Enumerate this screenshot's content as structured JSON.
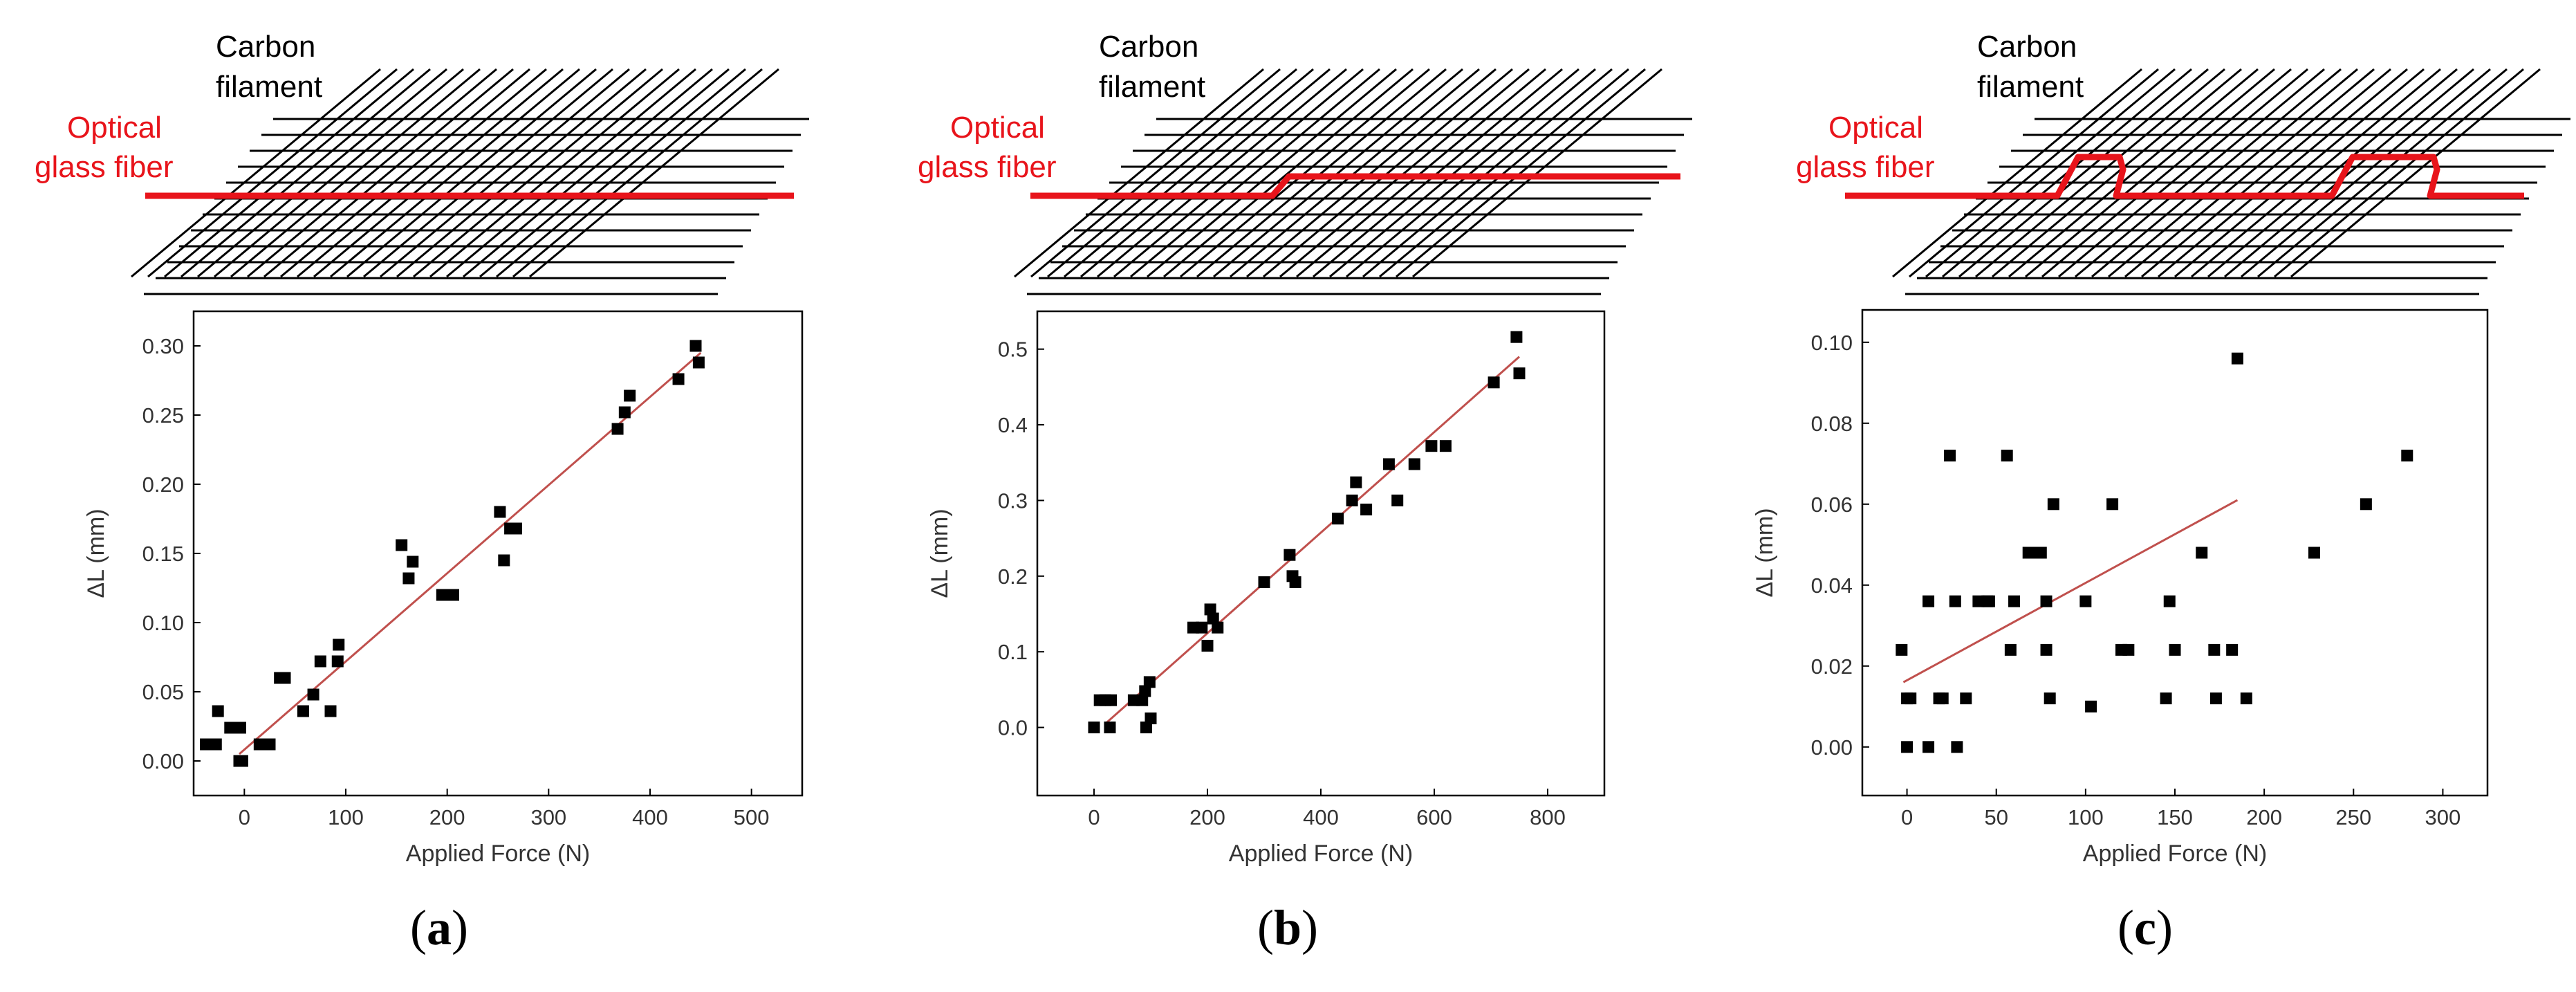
{
  "panels": [
    {
      "label": "a",
      "schematic": {
        "carbon_label_line1": "Carbon",
        "carbon_label_line2": "filament",
        "fiber_label_line1": "Optical",
        "fiber_label_line2": "glass fiber",
        "fiber_shape": "straight"
      }
    },
    {
      "label": "b",
      "schematic": {
        "carbon_label_line1": "Carbon",
        "carbon_label_line2": "filament",
        "fiber_label_line1": "Optical",
        "fiber_label_line2": "glass fiber",
        "fiber_shape": "single-step"
      }
    },
    {
      "label": "c",
      "schematic": {
        "carbon_label_line1": "Carbon",
        "carbon_label_line2": "filament",
        "fiber_label_line1": "Optical",
        "fiber_label_line2": "glass fiber",
        "fiber_shape": "double-bump"
      }
    }
  ],
  "colors": {
    "fiber": "#e8141b",
    "fit_line": "#c0504d",
    "marker": "#000000",
    "filament": "#000000"
  },
  "chart_data": [
    {
      "type": "scatter",
      "panel": "a",
      "xlabel": "Applied Force (N)",
      "ylabel": "ΔL (mm)",
      "xlim": [
        -50,
        550
      ],
      "ylim": [
        -0.025,
        0.325
      ],
      "xticks": [
        0,
        100,
        200,
        300,
        400,
        500
      ],
      "yticks": [
        0.0,
        0.05,
        0.1,
        0.15,
        0.2,
        0.25,
        0.3
      ],
      "ytick_decimals": 2,
      "fit": {
        "x": [
          -5,
          450
        ],
        "y": [
          0.005,
          0.295
        ]
      },
      "points": [
        [
          -38,
          0.012
        ],
        [
          -28,
          0.012
        ],
        [
          -26,
          0.036
        ],
        [
          -14,
          0.024
        ],
        [
          -10,
          0.024
        ],
        [
          -4,
          0.024
        ],
        [
          -5,
          0.0
        ],
        [
          -2,
          0.0
        ],
        [
          15,
          0.012
        ],
        [
          25,
          0.012
        ],
        [
          35,
          0.06
        ],
        [
          40,
          0.06
        ],
        [
          58,
          0.036
        ],
        [
          68,
          0.048
        ],
        [
          75,
          0.072
        ],
        [
          85,
          0.036
        ],
        [
          92,
          0.072
        ],
        [
          93,
          0.084
        ],
        [
          155,
          0.156
        ],
        [
          162,
          0.132
        ],
        [
          166,
          0.144
        ],
        [
          195,
          0.12
        ],
        [
          206,
          0.12
        ],
        [
          252,
          0.18
        ],
        [
          256,
          0.145
        ],
        [
          262,
          0.168
        ],
        [
          268,
          0.168
        ],
        [
          368,
          0.24
        ],
        [
          375,
          0.252
        ],
        [
          380,
          0.264
        ],
        [
          428,
          0.276
        ],
        [
          445,
          0.3
        ],
        [
          448,
          0.288
        ]
      ]
    },
    {
      "type": "scatter",
      "panel": "b",
      "xlabel": "Applied Force (N)",
      "ylabel": "ΔL (mm)",
      "xlim": [
        -100,
        900
      ],
      "ylim": [
        -0.09,
        0.55
      ],
      "xticks": [
        0,
        200,
        400,
        600,
        800
      ],
      "yticks": [
        0.0,
        0.1,
        0.2,
        0.3,
        0.4,
        0.5
      ],
      "ytick_decimals": 1,
      "fit": {
        "x": [
          20,
          750
        ],
        "y": [
          0.005,
          0.49
        ]
      },
      "points": [
        [
          0,
          0.0
        ],
        [
          10,
          0.036
        ],
        [
          20,
          0.036
        ],
        [
          28,
          0.0
        ],
        [
          30,
          0.036
        ],
        [
          70,
          0.036
        ],
        [
          85,
          0.036
        ],
        [
          90,
          0.048
        ],
        [
          92,
          0.0
        ],
        [
          98,
          0.06
        ],
        [
          100,
          0.012
        ],
        [
          175,
          0.132
        ],
        [
          190,
          0.132
        ],
        [
          200,
          0.108
        ],
        [
          205,
          0.156
        ],
        [
          210,
          0.144
        ],
        [
          218,
          0.132
        ],
        [
          300,
          0.192
        ],
        [
          345,
          0.228
        ],
        [
          350,
          0.2
        ],
        [
          355,
          0.192
        ],
        [
          430,
          0.276
        ],
        [
          455,
          0.3
        ],
        [
          462,
          0.324
        ],
        [
          480,
          0.288
        ],
        [
          520,
          0.348
        ],
        [
          535,
          0.3
        ],
        [
          565,
          0.348
        ],
        [
          595,
          0.372
        ],
        [
          620,
          0.372
        ],
        [
          705,
          0.456
        ],
        [
          745,
          0.516
        ],
        [
          750,
          0.468
        ]
      ]
    },
    {
      "type": "scatter",
      "panel": "c",
      "xlabel": "Applied Force (N)",
      "ylabel": "ΔL (mm)",
      "xlim": [
        -25,
        325
      ],
      "ylim": [
        -0.012,
        0.108
      ],
      "xticks": [
        0,
        50,
        100,
        150,
        200,
        250,
        300
      ],
      "yticks": [
        0.0,
        0.02,
        0.04,
        0.06,
        0.08,
        0.1
      ],
      "ytick_decimals": 2,
      "fit": {
        "x": [
          -2,
          185
        ],
        "y": [
          0.016,
          0.061
        ]
      },
      "points": [
        [
          -3,
          0.024
        ],
        [
          0,
          0.0
        ],
        [
          0,
          0.012
        ],
        [
          2,
          0.012
        ],
        [
          12,
          0.036
        ],
        [
          12,
          0.0
        ],
        [
          18,
          0.012
        ],
        [
          20,
          0.012
        ],
        [
          24,
          0.072
        ],
        [
          27,
          0.036
        ],
        [
          28,
          0.0
        ],
        [
          33,
          0.012
        ],
        [
          40,
          0.036
        ],
        [
          45,
          0.036
        ],
        [
          46,
          0.036
        ],
        [
          56,
          0.072
        ],
        [
          58,
          0.024
        ],
        [
          60,
          0.036
        ],
        [
          68,
          0.048
        ],
        [
          72,
          0.048
        ],
        [
          75,
          0.048
        ],
        [
          78,
          0.036
        ],
        [
          78,
          0.024
        ],
        [
          80,
          0.012
        ],
        [
          82,
          0.06
        ],
        [
          100,
          0.036
        ],
        [
          103,
          0.01
        ],
        [
          115,
          0.06
        ],
        [
          120,
          0.024
        ],
        [
          124,
          0.024
        ],
        [
          145,
          0.012
        ],
        [
          147,
          0.036
        ],
        [
          150,
          0.024
        ],
        [
          165,
          0.048
        ],
        [
          172,
          0.024
        ],
        [
          173,
          0.012
        ],
        [
          182,
          0.024
        ],
        [
          185,
          0.096
        ],
        [
          190,
          0.012
        ],
        [
          228,
          0.048
        ],
        [
          257,
          0.06
        ],
        [
          280,
          0.072
        ]
      ]
    }
  ]
}
